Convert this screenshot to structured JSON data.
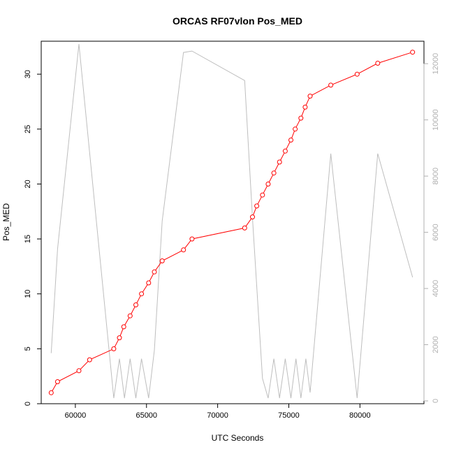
{
  "chart_data": {
    "type": "line",
    "title": "ORCAS RF07vlon Pos_MED",
    "xlabel": "UTC Seconds",
    "ylabel": "Pos_MED",
    "xlim": [
      57600,
      84500
    ],
    "ylim": [
      0,
      33
    ],
    "y2lim": [
      -100,
      12800
    ],
    "x_ticks": [
      60000,
      65000,
      70000,
      75000,
      80000
    ],
    "y_ticks": [
      0,
      5,
      10,
      15,
      20,
      25,
      30
    ],
    "y2_ticks": [
      0,
      2000,
      4000,
      6000,
      8000,
      10000,
      12000
    ],
    "grid": false,
    "colors": {
      "primary": "#ff0000",
      "secondary": "#bebebe"
    },
    "series": [
      {
        "axis": "left",
        "style": "line+points",
        "x": [
          58300,
          58750,
          60250,
          61000,
          62700,
          63100,
          63400,
          63850,
          64250,
          64650,
          65150,
          65550,
          66100,
          67600,
          68200,
          71900,
          72450,
          72750,
          73150,
          73550,
          73950,
          74350,
          74750,
          75150,
          75450,
          75850,
          76150,
          76500,
          77950,
          79800,
          81250,
          83700
        ],
        "values": [
          1,
          2,
          3,
          4,
          5,
          6,
          7,
          8,
          9,
          10,
          11,
          12,
          13,
          14,
          15,
          16,
          17,
          18,
          19,
          20,
          21,
          22,
          23,
          24,
          25,
          26,
          27,
          28,
          29,
          30,
          31,
          32
        ]
      },
      {
        "axis": "right",
        "style": "line",
        "x": [
          58300,
          58750,
          60250,
          62700,
          63100,
          63450,
          63850,
          64250,
          64650,
          65150,
          65550,
          66100,
          67600,
          68200,
          71900,
          72450,
          73150,
          73550,
          73950,
          74350,
          74750,
          75150,
          75500,
          75850,
          76200,
          76500,
          77950,
          79800,
          81250,
          83700
        ],
        "values": [
          1700,
          5400,
          12700,
          100,
          1500,
          100,
          1500,
          100,
          1500,
          100,
          1800,
          6400,
          12400,
          12450,
          11400,
          6500,
          800,
          100,
          1500,
          100,
          1500,
          100,
          1500,
          100,
          1500,
          300,
          8800,
          100,
          8800,
          4400
        ]
      }
    ]
  }
}
